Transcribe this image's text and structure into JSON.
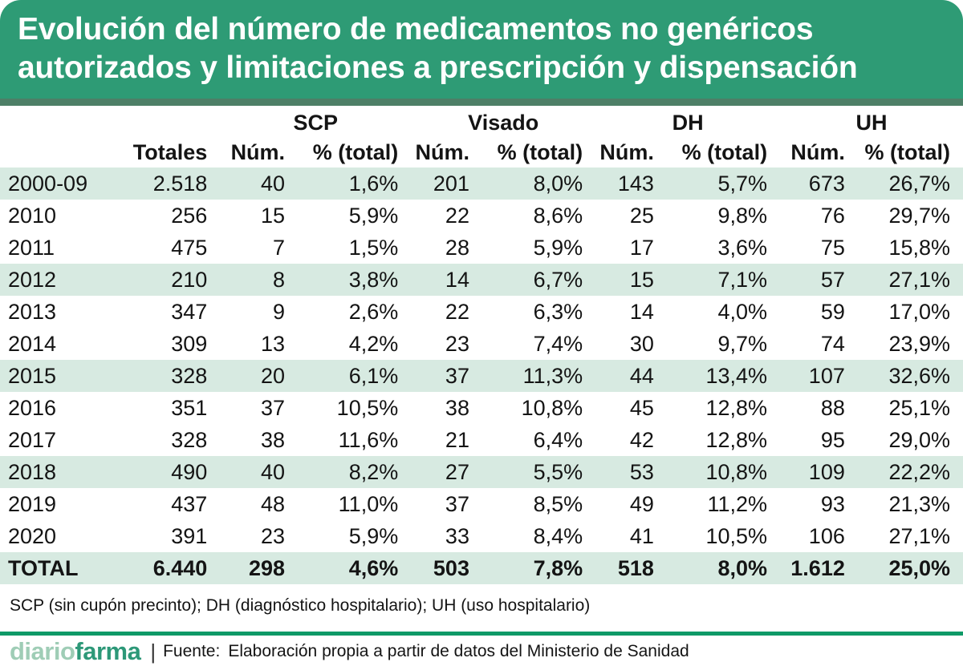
{
  "title": {
    "line1": "Evolución del número de medicamentos no genéricos",
    "line2": "autorizados y limitaciones a prescripción y dispensación"
  },
  "colors": {
    "banner_green": "#2e9b75",
    "divider_green": "#4e7f67",
    "row_stripe": "#d7eae1",
    "rule_green": "#0f9a67",
    "logo_light": "#9fcdb6",
    "logo_dark": "#2d9878"
  },
  "chart_data": {
    "type": "table",
    "title": "Evolución del número de medicamentos no genéricos autorizados y limitaciones a prescripción y dispensación",
    "group_labels": [
      "SCP",
      "Visado",
      "DH",
      "UH"
    ],
    "columns": [
      "",
      "Totales",
      "Núm.",
      "% (total)",
      "Núm.",
      "% (total)",
      "Núm.",
      "% (total)",
      "Núm.",
      "% (total)"
    ],
    "rows": [
      [
        "2000-09",
        "2.518",
        "40",
        "1,6%",
        "201",
        "8,0%",
        "143",
        "5,7%",
        "673",
        "26,7%"
      ],
      [
        "2010",
        "256",
        "15",
        "5,9%",
        "22",
        "8,6%",
        "25",
        "9,8%",
        "76",
        "29,7%"
      ],
      [
        "2011",
        "475",
        "7",
        "1,5%",
        "28",
        "5,9%",
        "17",
        "3,6%",
        "75",
        "15,8%"
      ],
      [
        "2012",
        "210",
        "8",
        "3,8%",
        "14",
        "6,7%",
        "15",
        "7,1%",
        "57",
        "27,1%"
      ],
      [
        "2013",
        "347",
        "9",
        "2,6%",
        "22",
        "6,3%",
        "14",
        "4,0%",
        "59",
        "17,0%"
      ],
      [
        "2014",
        "309",
        "13",
        "4,2%",
        "23",
        "7,4%",
        "30",
        "9,7%",
        "74",
        "23,9%"
      ],
      [
        "2015",
        "328",
        "20",
        "6,1%",
        "37",
        "11,3%",
        "44",
        "13,4%",
        "107",
        "32,6%"
      ],
      [
        "2016",
        "351",
        "37",
        "10,5%",
        "38",
        "10,8%",
        "45",
        "12,8%",
        "88",
        "25,1%"
      ],
      [
        "2017",
        "328",
        "38",
        "11,6%",
        "21",
        "6,4%",
        "42",
        "12,8%",
        "95",
        "29,0%"
      ],
      [
        "2018",
        "490",
        "40",
        "8,2%",
        "27",
        "5,5%",
        "53",
        "10,8%",
        "109",
        "22,2%"
      ],
      [
        "2019",
        "437",
        "48",
        "11,0%",
        "37",
        "8,5%",
        "49",
        "11,2%",
        "93",
        "21,3%"
      ],
      [
        "2020",
        "391",
        "23",
        "5,9%",
        "33",
        "8,4%",
        "41",
        "10,5%",
        "106",
        "27,1%"
      ]
    ],
    "total_row": [
      "TOTAL",
      "6.440",
      "298",
      "4,6%",
      "503",
      "7,8%",
      "518",
      "8,0%",
      "1.612",
      "25,0%"
    ],
    "footnote": "SCP (sin cupón precinto); DH (diagnóstico hospitalario); UH (uso hospitalario)",
    "source": "Elaboración propia a partir de datos del Ministerio de Sanidad",
    "shaded_row_pattern": "every 3rd row starting at first, plus total"
  },
  "footer": {
    "logo_light": "diario",
    "logo_bold": "farma",
    "separator": "|",
    "source_label": "Fuente:",
    "source_text": "Elaboración propia a partir de datos del Ministerio de Sanidad"
  }
}
